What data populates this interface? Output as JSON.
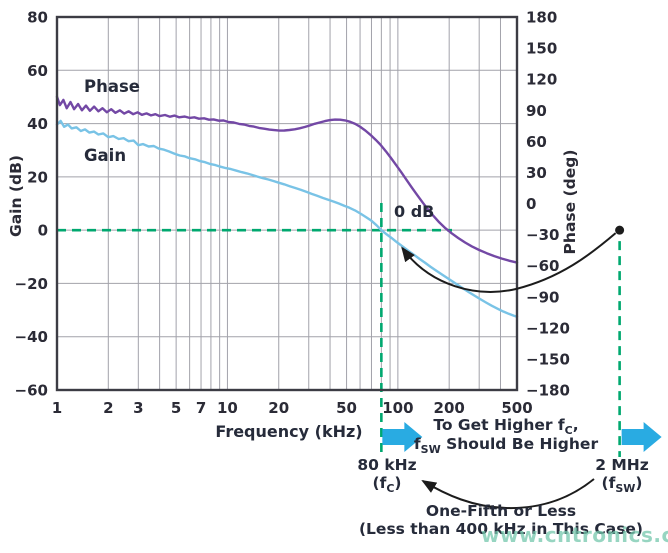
{
  "series_labels": {
    "phase": "Phase",
    "gain": "Gain"
  },
  "annotations": {
    "zero_db": "0 dB",
    "to_get_higher": {
      "l1a": "To Get Higher f",
      "l1sub": "C",
      "l1b": ",",
      "l2a": "f",
      "l2sub": "SW",
      "l2b": " Should Be Higher"
    },
    "fc": {
      "freq": "80 kHz",
      "pre": "(f",
      "sub": "C",
      "post": ")"
    },
    "fsw": {
      "freq": "2 MHz",
      "pre": "(f",
      "sub": "SW",
      "post": ")"
    },
    "one_fifth": {
      "line1": "One-Fifth or Less",
      "line2": "(Less than 400 kHz in This Case)"
    }
  },
  "watermark": "www.cntronics.com",
  "colors": {
    "purple": "#7348a5",
    "blue": "#79c3e6",
    "green": "#00a86f",
    "cyan": "#29abe2",
    "grid": "#a2a2aa",
    "frame": "#3c3c44",
    "black": "#1c1c1c"
  },
  "chart_data": {
    "type": "line",
    "title": "",
    "x_axis": {
      "label": "Frequency (kHz)",
      "scale": "log",
      "range": [
        1,
        500
      ],
      "ticks": [
        [
          1,
          "1"
        ],
        [
          2,
          "2"
        ],
        [
          3,
          "3"
        ],
        [
          5,
          "5"
        ],
        [
          7,
          "7"
        ],
        [
          10,
          "10"
        ],
        [
          20,
          "20"
        ],
        [
          50,
          "50"
        ],
        [
          100,
          "100"
        ],
        [
          200,
          "200"
        ],
        [
          500,
          "500"
        ]
      ],
      "gridlines": [
        2,
        3,
        4,
        5,
        6,
        7,
        8,
        9,
        10,
        20,
        30,
        40,
        50,
        60,
        70,
        80,
        90,
        100,
        200,
        300,
        400
      ]
    },
    "y_axis_left": {
      "label": "Gain (dB)",
      "range": [
        -60,
        80
      ],
      "ticks": [
        [
          80,
          "80"
        ],
        [
          60,
          "60"
        ],
        [
          40,
          "40"
        ],
        [
          20,
          "20"
        ],
        [
          0,
          "0"
        ],
        [
          -20,
          "−20"
        ],
        [
          -40,
          "−40"
        ],
        [
          -60,
          "−60"
        ]
      ],
      "gridlines": [
        60,
        40,
        20,
        0,
        -20,
        -40
      ]
    },
    "y_axis_right": {
      "label": "Phase (deg)",
      "range": [
        -180,
        180
      ],
      "ticks": [
        [
          180,
          "180"
        ],
        [
          150,
          "150"
        ],
        [
          120,
          "120"
        ],
        [
          90,
          "90"
        ],
        [
          60,
          "60"
        ],
        [
          30,
          "30"
        ],
        [
          0,
          "0"
        ],
        [
          -30,
          "−30"
        ],
        [
          -60,
          "−60"
        ],
        [
          -90,
          "−90"
        ],
        [
          -120,
          "−120"
        ],
        [
          -150,
          "−150"
        ],
        [
          -180,
          "−180"
        ]
      ]
    },
    "grid": true,
    "legend_position": "inside-top-left",
    "markers": {
      "crossover": {
        "f_khz": 80,
        "gain_db": 0,
        "label": "0 dB"
      },
      "fsw": {
        "f_khz": 2000,
        "label": "2 MHz"
      }
    },
    "series": [
      {
        "name": "Phase",
        "axis": "right",
        "color": "#7348a5",
        "unit": "deg",
        "points": [
          [
            1,
            103
          ],
          [
            1.04,
            95
          ],
          [
            1.09,
            100
          ],
          [
            1.14,
            92
          ],
          [
            1.2,
            98
          ],
          [
            1.26,
            91
          ],
          [
            1.33,
            96
          ],
          [
            1.4,
            90
          ],
          [
            1.48,
            94.5
          ],
          [
            1.56,
            89.5
          ],
          [
            1.65,
            93.5
          ],
          [
            1.75,
            89
          ],
          [
            1.85,
            92
          ],
          [
            1.96,
            88
          ],
          [
            2.08,
            91
          ],
          [
            2.2,
            87.5
          ],
          [
            2.34,
            90
          ],
          [
            2.48,
            86.8
          ],
          [
            2.63,
            89
          ],
          [
            2.8,
            86.2
          ],
          [
            2.97,
            88
          ],
          [
            3.15,
            85.6
          ],
          [
            3.35,
            87
          ],
          [
            3.56,
            85
          ],
          [
            3.78,
            86.2
          ],
          [
            4,
            84.4
          ],
          [
            4.3,
            85.4
          ],
          [
            4.6,
            83.8
          ],
          [
            4.9,
            84.8
          ],
          [
            5.2,
            83.2
          ],
          [
            5.6,
            84
          ],
          [
            6,
            82.6
          ],
          [
            6.4,
            83.2
          ],
          [
            6.8,
            81.8
          ],
          [
            7.3,
            82.2
          ],
          [
            7.8,
            80.9
          ],
          [
            8.3,
            81.2
          ],
          [
            8.9,
            79.9
          ],
          [
            9.5,
            80.1
          ],
          [
            10.2,
            78.6
          ],
          [
            10.9,
            78.2
          ],
          [
            11.7,
            76.8
          ],
          [
            12.5,
            76.2
          ],
          [
            13.4,
            74.9
          ],
          [
            14.3,
            74.2
          ],
          [
            15.3,
            73
          ],
          [
            16.4,
            72.2
          ],
          [
            17.6,
            71.3
          ],
          [
            18.8,
            70.8
          ],
          [
            20.2,
            70.4
          ],
          [
            21.6,
            70.5
          ],
          [
            23.1,
            70.9
          ],
          [
            24.8,
            71.6
          ],
          [
            26.5,
            72.6
          ],
          [
            28.4,
            73.8
          ],
          [
            30.4,
            75.3
          ],
          [
            32.5,
            76.9
          ],
          [
            34.8,
            78.2
          ],
          [
            37.3,
            79.5
          ],
          [
            40,
            80.5
          ],
          [
            42.8,
            81
          ],
          [
            45.8,
            80.9
          ],
          [
            49,
            80.2
          ],
          [
            52.5,
            78.9
          ],
          [
            56.2,
            76.8
          ],
          [
            60.2,
            73.9
          ],
          [
            64.4,
            70.5
          ],
          [
            69,
            66.3
          ],
          [
            74,
            61.6
          ],
          [
            79,
            56.8
          ],
          [
            85,
            50.5
          ],
          [
            91,
            44
          ],
          [
            98,
            36.8
          ],
          [
            105,
            29.8
          ],
          [
            113,
            22.3
          ],
          [
            121,
            15.2
          ],
          [
            130,
            8
          ],
          [
            140,
            0.8
          ],
          [
            150,
            -5.6
          ],
          [
            162,
            -12.2
          ],
          [
            175,
            -18.2
          ],
          [
            190,
            -23.8
          ],
          [
            207,
            -28.8
          ],
          [
            226,
            -33.3
          ],
          [
            248,
            -37.6
          ],
          [
            272,
            -41.4
          ],
          [
            300,
            -44.9
          ],
          [
            332,
            -48
          ],
          [
            368,
            -50.8
          ],
          [
            408,
            -53.2
          ],
          [
            452,
            -55.3
          ],
          [
            500,
            -57
          ]
        ]
      },
      {
        "name": "Gain",
        "axis": "left",
        "color": "#79c3e6",
        "unit": "dB",
        "points": [
          [
            1,
            39.6
          ],
          [
            1.05,
            41
          ],
          [
            1.1,
            38.8
          ],
          [
            1.16,
            39.6
          ],
          [
            1.22,
            38.2
          ],
          [
            1.3,
            38.6
          ],
          [
            1.38,
            37.2
          ],
          [
            1.46,
            37.8
          ],
          [
            1.55,
            36.6
          ],
          [
            1.65,
            37
          ],
          [
            1.75,
            35.9
          ],
          [
            1.87,
            36.3
          ],
          [
            2,
            34.9
          ],
          [
            2.14,
            35.3
          ],
          [
            2.3,
            34.2
          ],
          [
            2.46,
            34.5
          ],
          [
            2.63,
            33.4
          ],
          [
            2.82,
            33.6
          ],
          [
            3,
            31.9
          ],
          [
            3.2,
            32.3
          ],
          [
            3.45,
            31.4
          ],
          [
            3.7,
            31.6
          ],
          [
            3.95,
            30.6
          ],
          [
            4.25,
            30.2
          ],
          [
            4.55,
            29.5
          ],
          [
            4.9,
            28.7
          ],
          [
            5.25,
            28
          ],
          [
            5.6,
            27.7
          ],
          [
            6,
            27
          ],
          [
            6.45,
            26.6
          ],
          [
            6.9,
            25.9
          ],
          [
            7.4,
            25.5
          ],
          [
            7.95,
            24.8
          ],
          [
            8.5,
            24.4
          ],
          [
            9.1,
            23.8
          ],
          [
            9.8,
            23.3
          ],
          [
            10.5,
            22.9
          ],
          [
            11.3,
            22.3
          ],
          [
            12.1,
            21.8
          ],
          [
            13,
            21.3
          ],
          [
            14,
            20.7
          ],
          [
            15,
            20.1
          ],
          [
            16.2,
            19.5
          ],
          [
            17.4,
            19
          ],
          [
            18.7,
            18.4
          ],
          [
            20,
            17.8
          ],
          [
            21.5,
            17.2
          ],
          [
            23.2,
            16.5
          ],
          [
            25,
            15.8
          ],
          [
            27,
            15.1
          ],
          [
            29,
            14.4
          ],
          [
            31.2,
            13.6
          ],
          [
            33.6,
            12.9
          ],
          [
            36.2,
            12.1
          ],
          [
            39,
            11.4
          ],
          [
            42,
            10.7
          ],
          [
            45,
            10
          ],
          [
            48.6,
            9.1
          ],
          [
            52,
            8.4
          ],
          [
            56,
            7.4
          ],
          [
            60,
            6.3
          ],
          [
            65,
            4.9
          ],
          [
            70,
            3.5
          ],
          [
            75,
            1.8
          ],
          [
            80,
            0
          ],
          [
            86,
            -1.6
          ],
          [
            92,
            -3
          ],
          [
            99,
            -4.6
          ],
          [
            107,
            -6.2
          ],
          [
            115,
            -7.7
          ],
          [
            124,
            -9.2
          ],
          [
            134,
            -10.8
          ],
          [
            144,
            -12.2
          ],
          [
            155,
            -13.7
          ],
          [
            167,
            -15.1
          ],
          [
            180,
            -16.5
          ],
          [
            194,
            -17.9
          ],
          [
            210,
            -19.3
          ],
          [
            226,
            -20.7
          ],
          [
            244,
            -22.1
          ],
          [
            263,
            -23.4
          ],
          [
            284,
            -24.7
          ],
          [
            306,
            -26
          ],
          [
            330,
            -27.2
          ],
          [
            356,
            -28.4
          ],
          [
            384,
            -29.5
          ],
          [
            414,
            -30.5
          ],
          [
            447,
            -31.4
          ],
          [
            482,
            -32.2
          ],
          [
            500,
            -32.5
          ]
        ]
      }
    ]
  }
}
